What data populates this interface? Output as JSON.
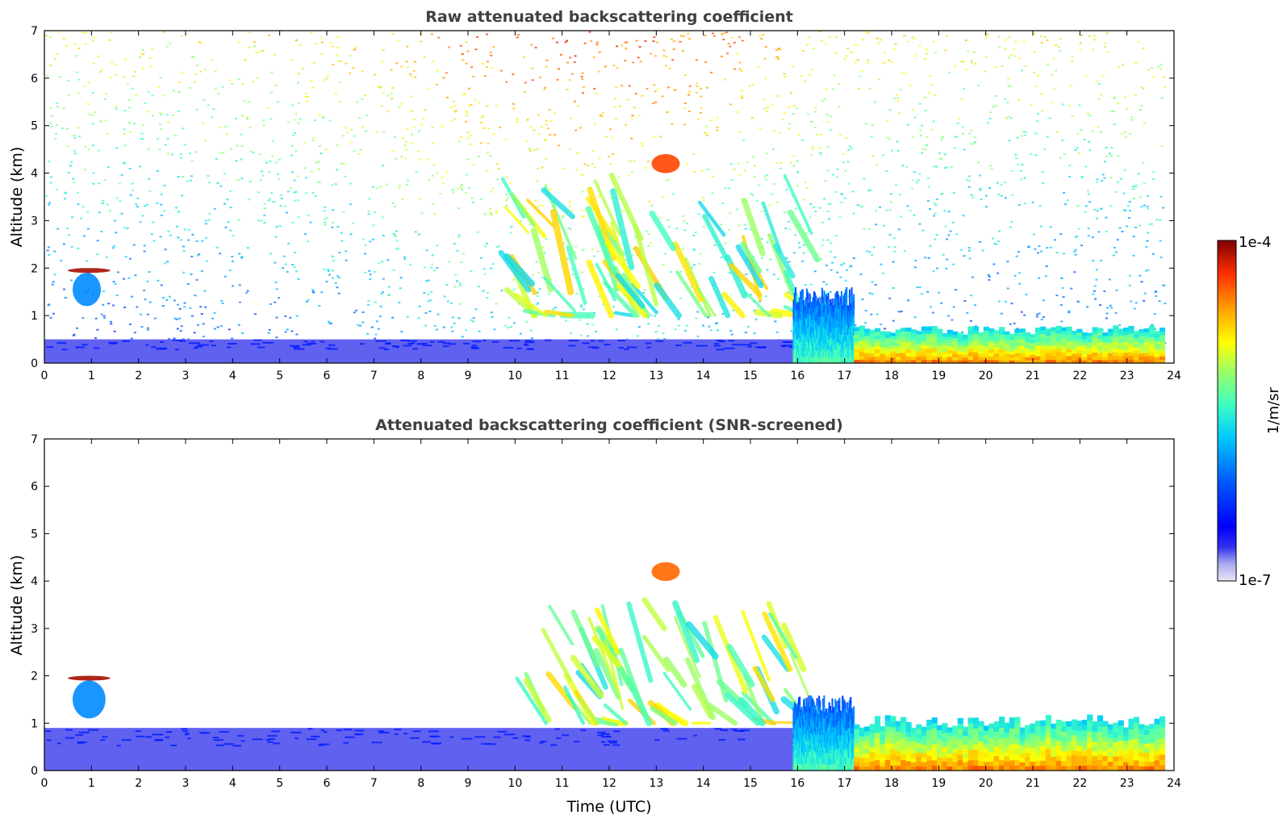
{
  "chart_data": [
    {
      "type": "heatmap",
      "title": "Raw attenuated backscattering coefficient",
      "xlabel": "",
      "ylabel": "Altitude (km)",
      "xlim": [
        0,
        24
      ],
      "ylim": [
        0,
        7
      ],
      "xticks": [
        "0",
        "1",
        "2",
        "3",
        "4",
        "5",
        "6",
        "7",
        "8",
        "9",
        "10",
        "11",
        "12",
        "13",
        "14",
        "15",
        "16",
        "17",
        "18",
        "19",
        "20",
        "21",
        "22",
        "23",
        "24"
      ],
      "yticks": [
        "0",
        "1",
        "2",
        "3",
        "4",
        "5",
        "6",
        "7"
      ],
      "features": [
        {
          "kind": "noise",
          "x": [
            0,
            23.8
          ],
          "y": [
            0,
            7
          ],
          "value": 0.45
        },
        {
          "kind": "boundary_layer",
          "x": [
            0,
            16
          ],
          "y": [
            0,
            0.5
          ],
          "value": 0.08
        },
        {
          "kind": "cloud",
          "x": [
            0.5,
            1.4
          ],
          "y": [
            1.9,
            2.0
          ],
          "value": 0.97
        },
        {
          "kind": "virga",
          "x": [
            0.6,
            1.2
          ],
          "y": [
            1.2,
            1.9
          ],
          "value": 0.35
        },
        {
          "kind": "cloud",
          "x": [
            12.9,
            13.5
          ],
          "y": [
            4.0,
            4.4
          ],
          "value": 0.88
        },
        {
          "kind": "fall_streaks",
          "x": [
            9.5,
            15.9
          ],
          "y": [
            1.0,
            4.0
          ],
          "value": 0.6
        },
        {
          "kind": "aerosol_layer",
          "x": [
            15.9,
            17.2
          ],
          "y": [
            0,
            1.6
          ],
          "value": 0.5
        },
        {
          "kind": "aerosol_layer",
          "x": [
            17.2,
            23.8
          ],
          "y": [
            0,
            0.8
          ],
          "value": 0.78
        }
      ]
    },
    {
      "type": "heatmap",
      "title": "Attenuated backscattering coefficient (SNR-screened)",
      "xlabel": "Time (UTC)",
      "ylabel": "Altitude (km)",
      "xlim": [
        0,
        24
      ],
      "ylim": [
        0,
        7
      ],
      "xticks": [
        "0",
        "1",
        "2",
        "3",
        "4",
        "5",
        "6",
        "7",
        "8",
        "9",
        "10",
        "11",
        "12",
        "13",
        "14",
        "15",
        "16",
        "17",
        "18",
        "19",
        "20",
        "21",
        "22",
        "23",
        "24"
      ],
      "yticks": [
        "0",
        "1",
        "2",
        "3",
        "4",
        "5",
        "6",
        "7"
      ],
      "features": [
        {
          "kind": "boundary_layer",
          "x": [
            0,
            16
          ],
          "y": [
            0,
            0.9
          ],
          "value": 0.08
        },
        {
          "kind": "cloud",
          "x": [
            0.5,
            1.4
          ],
          "y": [
            1.9,
            2.0
          ],
          "value": 0.97
        },
        {
          "kind": "virga",
          "x": [
            0.6,
            1.3
          ],
          "y": [
            1.1,
            1.9
          ],
          "value": 0.35
        },
        {
          "kind": "cloud",
          "x": [
            12.9,
            13.5
          ],
          "y": [
            4.0,
            4.4
          ],
          "value": 0.85
        },
        {
          "kind": "fall_streaks",
          "x": [
            10.0,
            15.9
          ],
          "y": [
            1.0,
            3.7
          ],
          "value": 0.6
        },
        {
          "kind": "aerosol_layer",
          "x": [
            15.9,
            17.2
          ],
          "y": [
            0,
            1.6
          ],
          "value": 0.5
        },
        {
          "kind": "aerosol_layer",
          "x": [
            17.2,
            23.8
          ],
          "y": [
            0,
            1.2
          ],
          "value": 0.78
        }
      ]
    }
  ],
  "colorbar": {
    "label": "1/m/sr",
    "max_label": "1e-4",
    "min_label": "1e-7",
    "colors": [
      "#e6e6f5",
      "#aaaaf0",
      "#5050f0",
      "#0000ff",
      "#0050ff",
      "#00a0ff",
      "#00e0ff",
      "#40ffc0",
      "#a0ff60",
      "#ffff00",
      "#ffb000",
      "#ff5000",
      "#e00000",
      "#800000"
    ]
  }
}
